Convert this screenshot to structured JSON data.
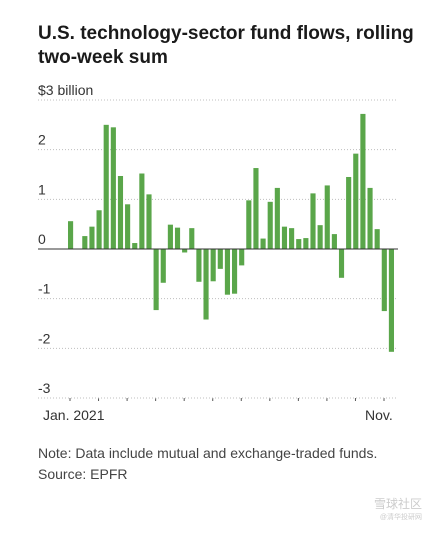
{
  "title": "U.S. technology-sector fund flows, rolling two-week sum",
  "footer": {
    "note": "Note: Data include mutual and exchange-traded funds.",
    "source": "Source: EPFR"
  },
  "watermark": {
    "main": "雪球社区",
    "sub": "@清华投研网"
  },
  "colors": {
    "bar": "#5aa64a",
    "grid": "#bfbfbf",
    "zero_line": "#333333"
  },
  "chart_data": {
    "type": "bar",
    "unit": "$3 billion",
    "ylim": [
      -3,
      3
    ],
    "yticks": [
      {
        "value": 3,
        "label": "$3 billion"
      },
      {
        "value": 2,
        "label": "2"
      },
      {
        "value": 1,
        "label": "1"
      },
      {
        "value": 0,
        "label": "0"
      },
      {
        "value": -1,
        "label": "-1"
      },
      {
        "value": -2,
        "label": "-2"
      },
      {
        "value": -3,
        "label": "-3"
      }
    ],
    "x_labels": [
      "Jan. 2021",
      "Nov."
    ],
    "grid": true,
    "values": [
      0.56,
      0.0,
      0.26,
      0.45,
      0.78,
      2.5,
      2.45,
      1.47,
      0.9,
      0.12,
      1.52,
      1.1,
      -1.23,
      -0.68,
      0.49,
      0.43,
      -0.07,
      0.42,
      -0.66,
      -1.42,
      -0.65,
      -0.4,
      -0.92,
      -0.9,
      -0.33,
      0.98,
      1.63,
      0.21,
      0.95,
      1.23,
      0.45,
      0.42,
      0.2,
      0.22,
      1.12,
      0.48,
      1.28,
      0.3,
      -0.58,
      1.45,
      1.92,
      2.72,
      1.23,
      0.4,
      -1.25,
      -2.07
    ]
  }
}
